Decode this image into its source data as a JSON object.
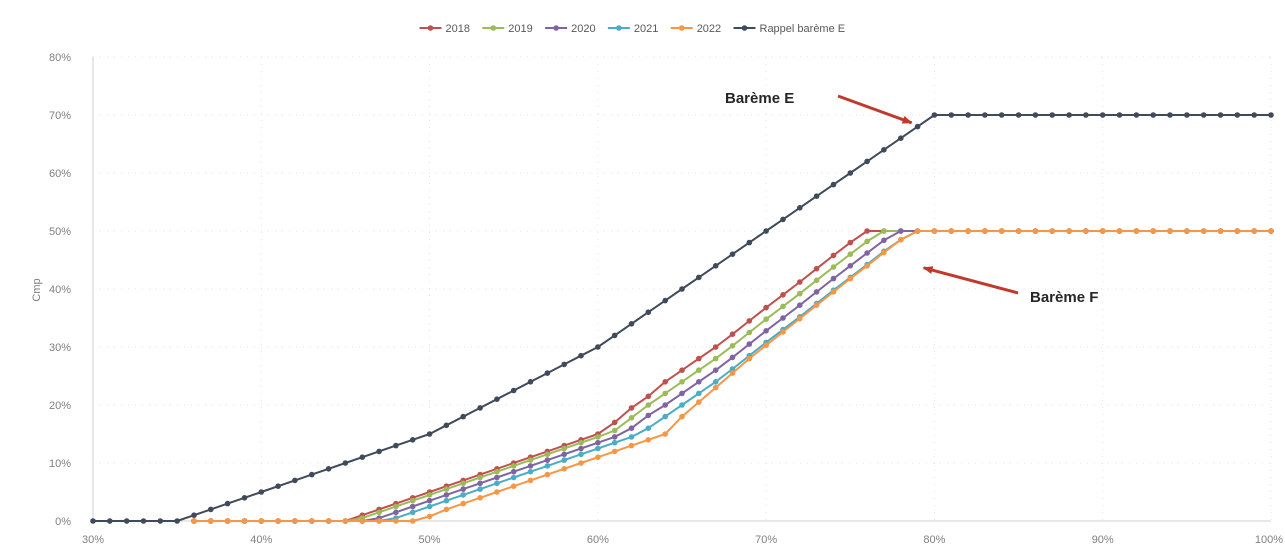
{
  "chart_data": {
    "type": "line",
    "title": "",
    "xlabel": "",
    "ylabel": "Cmp",
    "xlim": [
      30,
      100
    ],
    "ylim": [
      0,
      80
    ],
    "x_ticks": [
      "30%",
      "40%",
      "50%",
      "60%",
      "70%",
      "80%",
      "90%",
      "100%"
    ],
    "y_ticks": [
      "0%",
      "10%",
      "20%",
      "30%",
      "40%",
      "50%",
      "60%",
      "70%",
      "80%"
    ],
    "grid": "dotted vertical and horizontal",
    "legend_position": "top",
    "x": [
      30,
      31,
      32,
      33,
      34,
      35,
      36,
      37,
      38,
      39,
      40,
      41,
      42,
      43,
      44,
      45,
      46,
      47,
      48,
      49,
      50,
      51,
      52,
      53,
      54,
      55,
      56,
      57,
      58,
      59,
      60,
      61,
      62,
      63,
      64,
      65,
      66,
      67,
      68,
      69,
      70,
      71,
      72,
      73,
      74,
      75,
      76,
      77,
      78,
      79,
      80,
      81,
      82,
      83,
      84,
      85,
      86,
      87,
      88,
      89,
      90,
      91,
      92,
      93,
      94,
      95,
      96,
      97,
      98,
      99,
      100
    ],
    "series": [
      {
        "name": "2018",
        "color": "#c0504d",
        "values": [
          null,
          null,
          null,
          null,
          null,
          null,
          0,
          0,
          0,
          0,
          0,
          0,
          0,
          0,
          0,
          0,
          1,
          2,
          3,
          4,
          5,
          6,
          7,
          8,
          9,
          10,
          11,
          12,
          13,
          14,
          15,
          17,
          19.5,
          21.5,
          24,
          26,
          28,
          30,
          32.2,
          34.5,
          36.8,
          39,
          41.2,
          43.5,
          45.8,
          48,
          50,
          50,
          50,
          50,
          50,
          50,
          50,
          50,
          50,
          50,
          50,
          50,
          50,
          50,
          50,
          50,
          50,
          50,
          50,
          50,
          50,
          50,
          50,
          50,
          50
        ]
      },
      {
        "name": "2019",
        "color": "#9bbb59",
        "values": [
          null,
          null,
          null,
          null,
          null,
          null,
          0,
          0,
          0,
          0,
          0,
          0,
          0,
          0,
          0,
          0,
          0.5,
          1.5,
          2.5,
          3.5,
          4.5,
          5.5,
          6.5,
          7.5,
          8.5,
          9.5,
          10.5,
          11.5,
          12.5,
          13.5,
          14.5,
          15.6,
          17.8,
          20,
          22,
          24,
          26,
          28,
          30.2,
          32.5,
          34.8,
          37,
          39.2,
          41.5,
          43.8,
          46,
          48.2,
          50,
          50,
          50,
          50,
          50,
          50,
          50,
          50,
          50,
          50,
          50,
          50,
          50,
          50,
          50,
          50,
          50,
          50,
          50,
          50,
          50,
          50,
          50,
          50
        ]
      },
      {
        "name": "2020",
        "color": "#8064a2",
        "values": [
          null,
          null,
          null,
          null,
          null,
          null,
          0,
          0,
          0,
          0,
          0,
          0,
          0,
          0,
          0,
          0,
          0,
          0.5,
          1.5,
          2.5,
          3.5,
          4.5,
          5.5,
          6.5,
          7.5,
          8.5,
          9.5,
          10.5,
          11.5,
          12.5,
          13.5,
          14.5,
          16,
          18.2,
          20,
          22,
          24,
          26,
          28.2,
          30.5,
          32.8,
          35,
          37.2,
          39.5,
          41.8,
          44,
          46.2,
          48.4,
          50,
          50,
          50,
          50,
          50,
          50,
          50,
          50,
          50,
          50,
          50,
          50,
          50,
          50,
          50,
          50,
          50,
          50,
          50,
          50,
          50,
          50,
          50
        ]
      },
      {
        "name": "2021",
        "color": "#4bacc6",
        "values": [
          null,
          null,
          null,
          null,
          null,
          null,
          0,
          0,
          0,
          0,
          0,
          0,
          0,
          0,
          0,
          0,
          0,
          0,
          0.5,
          1.5,
          2.5,
          3.5,
          4.5,
          5.5,
          6.5,
          7.5,
          8.5,
          9.5,
          10.5,
          11.5,
          12.5,
          13.5,
          14.5,
          16,
          18,
          20,
          22,
          24,
          26.2,
          28.5,
          30.8,
          33,
          35.2,
          37.5,
          39.8,
          42,
          44.2,
          46.5,
          48.5,
          50,
          50,
          50,
          50,
          50,
          50,
          50,
          50,
          50,
          50,
          50,
          50,
          50,
          50,
          50,
          50,
          50,
          50,
          50,
          50,
          50,
          50
        ]
      },
      {
        "name": "2022",
        "color": "#f79646",
        "values": [
          null,
          null,
          null,
          null,
          null,
          null,
          0,
          0,
          0,
          0,
          0,
          0,
          0,
          0,
          0,
          0,
          0,
          0,
          0,
          0,
          0.8,
          2,
          3,
          4,
          5,
          6,
          7,
          8,
          9,
          10,
          11,
          12,
          13,
          14,
          15,
          18,
          20.5,
          23,
          25.5,
          28,
          30.3,
          32.6,
          34.9,
          37.2,
          39.5,
          41.8,
          44,
          46.3,
          48.5,
          50,
          50,
          50,
          50,
          50,
          50,
          50,
          50,
          50,
          50,
          50,
          50,
          50,
          50,
          50,
          50,
          50,
          50,
          50,
          50,
          50,
          50
        ]
      },
      {
        "name": "Rappel barème E",
        "color": "#3f4a5a",
        "values": [
          0,
          0,
          0,
          0,
          0,
          0,
          1,
          2,
          3,
          4,
          5,
          6,
          7,
          8,
          9,
          10,
          11,
          12,
          13,
          14,
          15,
          16.5,
          18,
          19.5,
          21,
          22.5,
          24,
          25.5,
          27,
          28.5,
          30,
          32,
          34,
          36,
          38,
          40,
          42,
          44,
          46,
          48,
          50,
          52,
          54,
          56,
          58,
          60,
          62,
          64,
          66,
          68,
          70,
          70,
          70,
          70,
          70,
          70,
          70,
          70,
          70,
          70,
          70,
          70,
          70,
          70,
          70,
          70,
          70,
          70,
          70,
          70,
          70
        ]
      }
    ],
    "annotations": [
      {
        "text": "Barème E",
        "points_to_x": 79,
        "points_to_y": 69
      },
      {
        "text": "Barème F",
        "points_to_x": 79,
        "points_to_y": 44
      }
    ]
  }
}
